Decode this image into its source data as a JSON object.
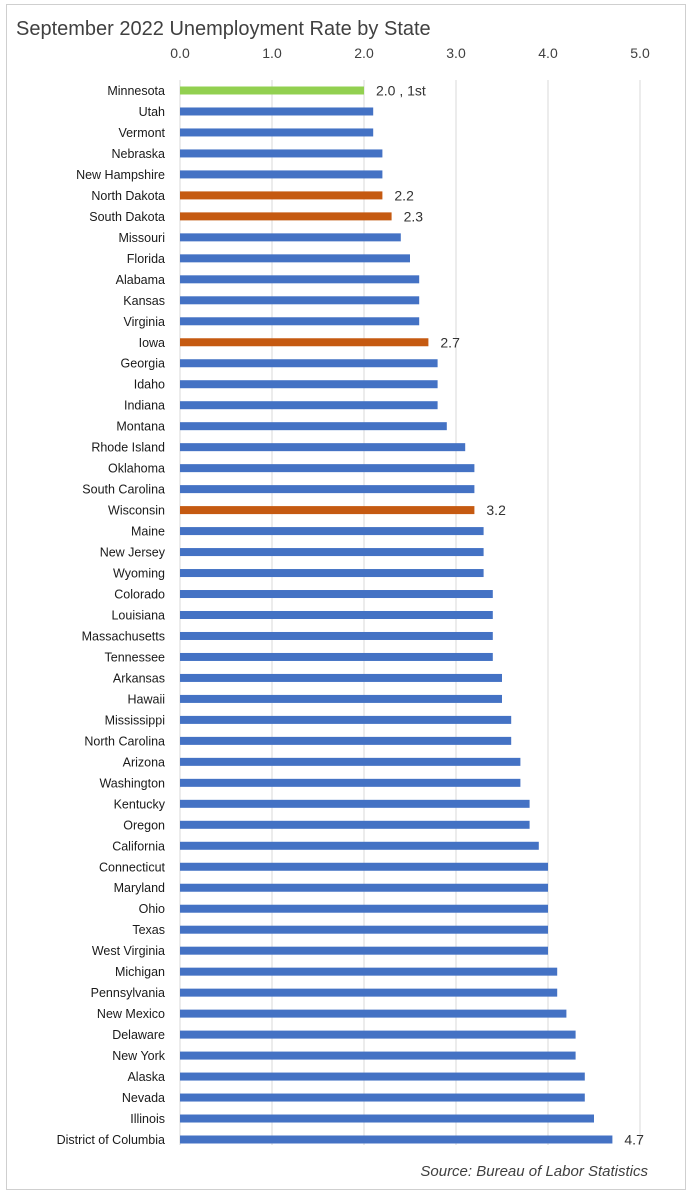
{
  "chart_data": {
    "type": "bar",
    "orientation": "horizontal",
    "title": "September 2022 Unemployment Rate by State",
    "source": "Source: Bureau of Labor Statistics",
    "xlim": [
      0,
      5
    ],
    "x_ticks": [
      "0.0",
      "1.0",
      "2.0",
      "3.0",
      "4.0",
      "5.0"
    ],
    "x_tick_values": [
      0,
      1,
      2,
      3,
      4,
      5
    ],
    "grid": true,
    "colors": {
      "default": "#4472C4",
      "highlight_first": "#92D050",
      "highlight": "#C55A11"
    },
    "categories": [
      "Minnesota",
      "Utah",
      "Vermont",
      "Nebraska",
      "New Hampshire",
      "North Dakota",
      "South Dakota",
      "Missouri",
      "Florida",
      "Alabama",
      "Kansas",
      "Virginia",
      "Iowa",
      "Georgia",
      "Idaho",
      "Indiana",
      "Montana",
      "Rhode Island",
      "Oklahoma",
      "South Carolina",
      "Wisconsin",
      "Maine",
      "New Jersey",
      "Wyoming",
      "Colorado",
      "Louisiana",
      "Massachusetts",
      "Tennessee",
      "Arkansas",
      "Hawaii",
      "Mississippi",
      "North Carolina",
      "Arizona",
      "Washington",
      "Kentucky",
      "Oregon",
      "California",
      "Connecticut",
      "Maryland",
      "Ohio",
      "Texas",
      "West Virginia",
      "Michigan",
      "Pennsylvania",
      "New Mexico",
      "Delaware",
      "New York",
      "Alaska",
      "Nevada",
      "Illinois",
      "District of Columbia"
    ],
    "values": [
      2.0,
      2.1,
      2.1,
      2.2,
      2.2,
      2.2,
      2.3,
      2.4,
      2.5,
      2.6,
      2.6,
      2.6,
      2.7,
      2.8,
      2.8,
      2.8,
      2.9,
      3.1,
      3.2,
      3.2,
      3.2,
      3.3,
      3.3,
      3.3,
      3.4,
      3.4,
      3.4,
      3.4,
      3.5,
      3.5,
      3.6,
      3.6,
      3.7,
      3.7,
      3.8,
      3.8,
      3.9,
      4.0,
      4.0,
      4.0,
      4.0,
      4.0,
      4.1,
      4.1,
      4.2,
      4.3,
      4.3,
      4.4,
      4.4,
      4.5,
      4.7
    ],
    "bar_styles": {
      "Minnesota": "highlight_first",
      "North Dakota": "highlight",
      "South Dakota": "highlight",
      "Iowa": "highlight",
      "Wisconsin": "highlight"
    },
    "data_labels": {
      "Minnesota": "2.0 , 1st",
      "North Dakota": "2.2",
      "South Dakota": "2.3",
      "Iowa": "2.7",
      "Wisconsin": "3.2",
      "District of Columbia": "4.7"
    }
  }
}
